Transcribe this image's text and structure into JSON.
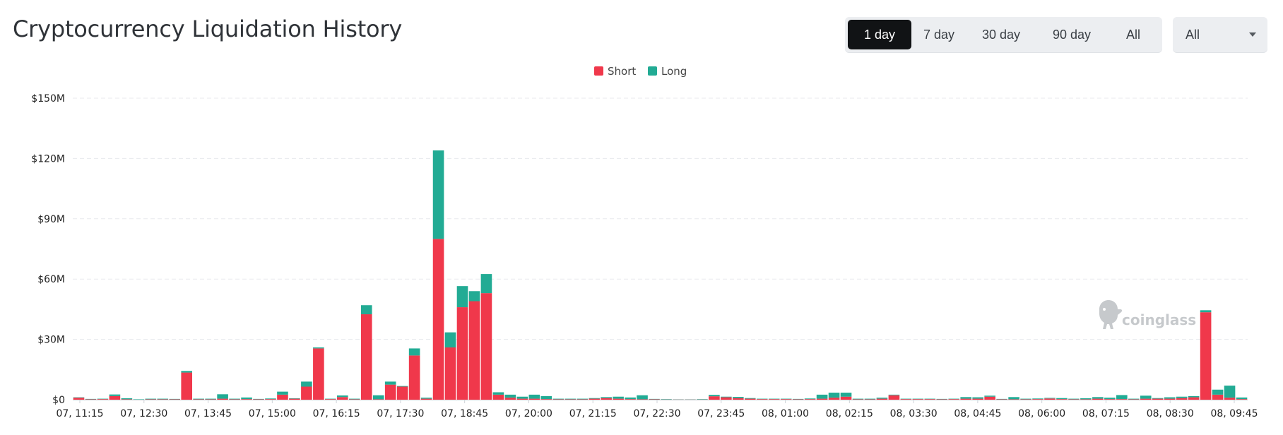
{
  "header": {
    "title": "Cryptocurrency Liquidation History"
  },
  "range_tabs": [
    {
      "label": "1 day",
      "active": true
    },
    {
      "label": "7 day",
      "active": false
    },
    {
      "label": "30 day",
      "active": false
    },
    {
      "label": "90 day",
      "active": false
    },
    {
      "label": "All",
      "active": false
    }
  ],
  "filter_select": {
    "value": "All"
  },
  "watermark": {
    "text": "coinglass",
    "icon": "coinglass-logo-icon"
  },
  "colors": {
    "short": "#f0384b",
    "long": "#22ab94",
    "grid": "#e8eaed"
  },
  "chart_data": {
    "type": "bar",
    "stacked": true,
    "y_tick_labels": [
      "$0",
      "$30M",
      "$60M",
      "$90M",
      "$120M",
      "$150M"
    ],
    "ylim": [
      0,
      150
    ],
    "y_unit": "$M",
    "grid": true,
    "legend_position": "top-center",
    "x_tick_labels": [
      "07, 11:15",
      "07, 12:30",
      "07, 13:45",
      "07, 15:00",
      "07, 16:15",
      "07, 17:30",
      "07, 18:45",
      "07, 20:00",
      "07, 21:15",
      "07, 22:30",
      "07, 23:45",
      "08, 01:00",
      "08, 02:15",
      "08, 03:30",
      "08, 04:45",
      "08, 06:00",
      "08, 07:15",
      "08, 08:30",
      "08, 09:45"
    ],
    "series": [
      {
        "name": "Short",
        "color": "#f0384b",
        "values": [
          1.0,
          0.2,
          0.3,
          1.8,
          0.2,
          0.0,
          0.2,
          0.2,
          0.2,
          13.5,
          0.2,
          0.2,
          0.5,
          0.2,
          0.3,
          0.2,
          0.3,
          2.5,
          0.5,
          6.5,
          25.5,
          0.3,
          1.3,
          0.2,
          42.5,
          0.2,
          7.5,
          6.5,
          22.0,
          0.5,
          80.0,
          26.0,
          46.0,
          49.0,
          53.0,
          2.5,
          1.0,
          0.5,
          0.5,
          0.3,
          0.2,
          0.2,
          0.2,
          0.5,
          0.8,
          0.5,
          0.3,
          0.2,
          0.2,
          0.1,
          0.1,
          0.1,
          0.1,
          1.7,
          1.2,
          0.8,
          0.5,
          0.3,
          0.3,
          0.3,
          0.2,
          0.3,
          0.5,
          1.0,
          1.5,
          0.2,
          0.2,
          0.5,
          2.2,
          0.3,
          0.3,
          0.3,
          0.2,
          0.3,
          0.5,
          0.5,
          1.5,
          0.2,
          0.2,
          0.2,
          0.3,
          0.6,
          0.3,
          0.2,
          0.2,
          0.5,
          0.3,
          0.3,
          0.2,
          0.5,
          0.5,
          0.5,
          0.8,
          1.2,
          43.5,
          2.5,
          1.0,
          0.3
        ]
      },
      {
        "name": "Long",
        "color": "#22ab94",
        "values": [
          0.2,
          0.2,
          0.2,
          0.8,
          0.5,
          0.2,
          0.3,
          0.3,
          0.2,
          0.8,
          0.3,
          0.3,
          2.2,
          0.3,
          0.8,
          0.2,
          0.3,
          1.5,
          0.2,
          2.5,
          0.5,
          0.2,
          0.8,
          0.3,
          4.5,
          2.0,
          1.5,
          0.3,
          3.5,
          0.5,
          44.0,
          7.5,
          10.5,
          5.0,
          9.5,
          1.2,
          1.5,
          1.0,
          2.0,
          1.5,
          0.3,
          0.3,
          0.3,
          0.3,
          0.5,
          1.0,
          0.8,
          2.0,
          0.2,
          0.2,
          0.1,
          0.1,
          0.2,
          0.7,
          0.3,
          0.6,
          0.3,
          0.2,
          0.2,
          0.2,
          0.2,
          0.3,
          2.0,
          2.5,
          2.0,
          0.3,
          0.3,
          0.5,
          0.3,
          0.2,
          0.2,
          0.2,
          0.2,
          0.2,
          0.8,
          0.7,
          0.5,
          0.2,
          1.1,
          0.3,
          0.3,
          0.3,
          0.5,
          0.3,
          0.5,
          0.8,
          0.7,
          2.0,
          0.3,
          1.5,
          0.3,
          0.7,
          0.7,
          0.6,
          1.0,
          2.5,
          6.0,
          0.8
        ]
      }
    ]
  }
}
